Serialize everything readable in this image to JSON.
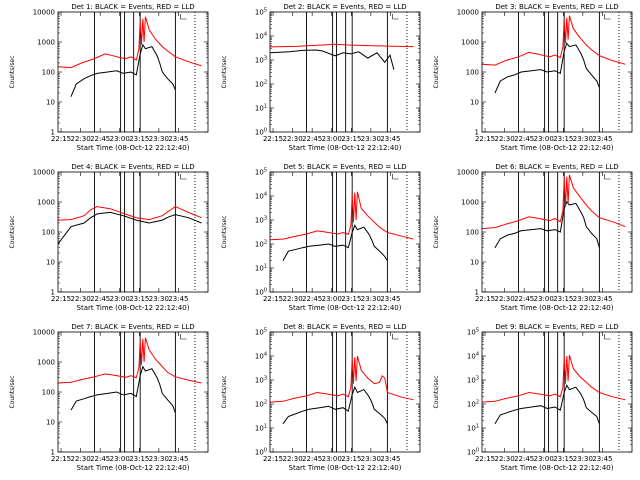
{
  "figure": {
    "xlabel": "Start Time (08-Oct-12 22:12:40)",
    "ylabel": "Counts/sec",
    "x_ticks": [
      "22:15",
      "22:30",
      "22:45",
      "23:00",
      "23:15",
      "23:30",
      "23:45"
    ],
    "colors": {
      "events": "#000000",
      "lld": "#ff0000",
      "axes": "#000000",
      "background": "#ffffff"
    }
  },
  "chart_data": [
    {
      "type": "line",
      "title": "Det 1: BLACK = Events, RED = LLD",
      "ylabel": "Counts/sec",
      "xlabel": "",
      "ylog": true,
      "ylim": [
        1,
        10000
      ],
      "y_ticks": [
        "1",
        "10",
        "100",
        "1000",
        "10000"
      ],
      "solid_markers_min": [
        28,
        48,
        51,
        58,
        63,
        90
      ],
      "dotted_markers_min": [
        105
      ],
      "series": [
        {
          "name": "Events",
          "x_min": [
            10,
            14,
            20,
            25,
            30,
            38,
            45,
            50,
            56,
            60,
            63,
            65,
            67,
            72,
            76,
            78,
            80,
            84,
            88,
            90
          ],
          "values": [
            15,
            40,
            60,
            75,
            90,
            100,
            110,
            90,
            100,
            80,
            400,
            800,
            600,
            700,
            350,
            200,
            100,
            60,
            40,
            25
          ]
        },
        {
          "name": "LLD",
          "x_min": [
            0,
            10,
            18,
            28,
            36,
            42,
            48,
            52,
            56,
            60,
            62,
            63,
            64,
            65,
            66,
            67,
            70,
            75,
            80,
            84,
            90,
            100,
            110
          ],
          "values": [
            150,
            140,
            200,
            280,
            400,
            350,
            300,
            280,
            320,
            250,
            600,
            5000,
            800,
            6000,
            1000,
            7000,
            2500,
            1200,
            700,
            500,
            320,
            220,
            160
          ]
        }
      ]
    },
    {
      "type": "line",
      "title": "Det 2: BLACK = Events, RED = LLD",
      "ylabel": "Counts/sec",
      "xlabel": "",
      "ylog": true,
      "ylim": [
        1,
        100000
      ],
      "y_ticks": [
        "10^0",
        "10^1",
        "10^2",
        "10^3",
        "10^4",
        "10^5"
      ],
      "solid_markers_min": [
        28,
        48,
        51,
        58,
        63,
        90
      ],
      "dotted_markers_min": [
        105
      ],
      "series": [
        {
          "name": "Events",
          "x_min": [
            0,
            15,
            25,
            35,
            40,
            50,
            56,
            62,
            68,
            75,
            82,
            88,
            92,
            95
          ],
          "values": [
            2000,
            2200,
            2500,
            2600,
            2400,
            1500,
            2000,
            1800,
            2200,
            1200,
            2000,
            800,
            1600,
            400
          ]
        },
        {
          "name": "LLD",
          "x_min": [
            0,
            20,
            40,
            50,
            60,
            75,
            90,
            110
          ],
          "values": [
            3500,
            3700,
            4200,
            4500,
            4200,
            4000,
            3800,
            3600
          ]
        }
      ]
    },
    {
      "type": "line",
      "title": "Det 3: BLACK = Events, RED = LLD",
      "ylabel": "Counts/sec",
      "xlabel": "",
      "ylog": true,
      "ylim": [
        1,
        10000
      ],
      "y_ticks": [
        "1",
        "10",
        "100",
        "1000",
        "10000"
      ],
      "solid_markers_min": [
        28,
        48,
        51,
        58,
        63,
        90
      ],
      "dotted_markers_min": [
        105
      ],
      "series": [
        {
          "name": "Events",
          "x_min": [
            10,
            14,
            20,
            25,
            30,
            38,
            45,
            50,
            56,
            60,
            63,
            65,
            67,
            72,
            76,
            78,
            80,
            84,
            88,
            90
          ],
          "values": [
            20,
            50,
            70,
            80,
            100,
            110,
            120,
            100,
            110,
            90,
            500,
            900,
            700,
            800,
            400,
            250,
            130,
            80,
            50,
            30
          ]
        },
        {
          "name": "LLD",
          "x_min": [
            0,
            10,
            18,
            28,
            36,
            42,
            48,
            52,
            56,
            60,
            62,
            63,
            64,
            65,
            66,
            67,
            70,
            75,
            80,
            84,
            90,
            100,
            110
          ],
          "values": [
            180,
            170,
            240,
            320,
            450,
            400,
            350,
            320,
            370,
            300,
            700,
            5500,
            900,
            6500,
            1200,
            7500,
            2800,
            1400,
            800,
            550,
            350,
            240,
            180
          ]
        }
      ]
    },
    {
      "type": "line",
      "title": "Det 4: BLACK = Events, RED = LLD",
      "ylabel": "Counts/sec",
      "xlabel": "",
      "ylog": true,
      "ylim": [
        1,
        10000
      ],
      "y_ticks": [
        "1",
        "10",
        "100",
        "1000",
        "10000"
      ],
      "solid_markers_min": [
        28,
        48,
        51,
        58,
        63,
        90
      ],
      "dotted_markers_min": [
        105
      ],
      "series": [
        {
          "name": "Events",
          "x_min": [
            0,
            10,
            20,
            25,
            30,
            40,
            50,
            60,
            70,
            80,
            85,
            90,
            100,
            110
          ],
          "values": [
            40,
            150,
            200,
            300,
            400,
            450,
            350,
            250,
            200,
            250,
            320,
            380,
            300,
            200
          ]
        },
        {
          "name": "LLD",
          "x_min": [
            0,
            10,
            20,
            25,
            30,
            40,
            50,
            60,
            70,
            80,
            85,
            90,
            100,
            110
          ],
          "values": [
            250,
            260,
            350,
            550,
            700,
            600,
            420,
            300,
            260,
            350,
            500,
            700,
            450,
            300
          ]
        }
      ]
    },
    {
      "type": "line",
      "title": "Det 5: BLACK = Events, RED = LLD",
      "ylabel": "Counts/sec",
      "xlabel": "",
      "ylog": true,
      "ylim": [
        1,
        100000
      ],
      "y_ticks": [
        "10^0",
        "10^1",
        "10^2",
        "10^3",
        "10^4",
        "10^5"
      ],
      "solid_markers_min": [
        28,
        48,
        51,
        58,
        63,
        90
      ],
      "dotted_markers_min": [
        105
      ],
      "series": [
        {
          "name": "Events",
          "x_min": [
            10,
            14,
            20,
            25,
            30,
            38,
            45,
            50,
            56,
            60,
            63,
            65,
            67,
            72,
            76,
            78,
            80,
            84,
            88,
            90
          ],
          "values": [
            20,
            50,
            60,
            70,
            80,
            90,
            100,
            80,
            90,
            70,
            300,
            600,
            400,
            500,
            250,
            150,
            80,
            50,
            30,
            20
          ]
        },
        {
          "name": "LLD",
          "x_min": [
            0,
            10,
            18,
            28,
            36,
            42,
            48,
            52,
            56,
            60,
            62,
            63,
            64,
            65,
            66,
            67,
            70,
            75,
            80,
            84,
            90,
            100,
            110
          ],
          "values": [
            150,
            160,
            200,
            260,
            350,
            320,
            280,
            260,
            300,
            250,
            600,
            12000,
            800,
            14000,
            1000,
            15000,
            3000,
            1500,
            800,
            500,
            300,
            220,
            160
          ]
        }
      ]
    },
    {
      "type": "line",
      "title": "Det 6: BLACK = Events, RED = LLD",
      "ylabel": "Counts/sec",
      "xlabel": "",
      "ylog": true,
      "ylim": [
        1,
        10000
      ],
      "y_ticks": [
        "1",
        "10",
        "100",
        "1000",
        "10000"
      ],
      "solid_markers_min": [
        28,
        48,
        51,
        58,
        63,
        90
      ],
      "dotted_markers_min": [
        105
      ],
      "series": [
        {
          "name": "Events",
          "x_min": [
            10,
            14,
            20,
            25,
            30,
            38,
            45,
            50,
            56,
            60,
            63,
            65,
            67,
            72,
            76,
            78,
            80,
            84,
            88,
            90
          ],
          "values": [
            30,
            60,
            80,
            90,
            110,
            120,
            130,
            110,
            120,
            100,
            600,
            1000,
            800,
            900,
            450,
            300,
            150,
            90,
            60,
            30
          ]
        },
        {
          "name": "LLD",
          "x_min": [
            0,
            10,
            18,
            28,
            36,
            42,
            48,
            52,
            56,
            60,
            62,
            63,
            64,
            65,
            66,
            67,
            70,
            75,
            80,
            84,
            90,
            100,
            110
          ],
          "values": [
            130,
            140,
            180,
            240,
            320,
            290,
            260,
            240,
            280,
            220,
            500,
            6000,
            700,
            7000,
            900,
            8000,
            3000,
            1500,
            800,
            500,
            300,
            220,
            150
          ]
        }
      ]
    },
    {
      "type": "line",
      "title": "Det 7: BLACK = Events, RED = LLD",
      "ylabel": "Counts/sec",
      "xlabel": "Start Time (08-Oct-12 22:12:40)",
      "ylog": true,
      "ylim": [
        1,
        10000
      ],
      "y_ticks": [
        "1",
        "10",
        "100",
        "1000",
        "10000"
      ],
      "solid_markers_min": [
        28,
        48,
        51,
        58,
        63,
        90
      ],
      "dotted_markers_min": [
        105
      ],
      "series": [
        {
          "name": "Events",
          "x_min": [
            10,
            14,
            20,
            25,
            30,
            38,
            45,
            50,
            56,
            60,
            63,
            65,
            67,
            72,
            76,
            78,
            80,
            84,
            88,
            90
          ],
          "values": [
            25,
            50,
            60,
            70,
            80,
            90,
            100,
            80,
            90,
            70,
            350,
            700,
            500,
            600,
            300,
            180,
            90,
            55,
            35,
            20
          ]
        },
        {
          "name": "LLD",
          "x_min": [
            0,
            10,
            18,
            28,
            36,
            42,
            48,
            52,
            56,
            60,
            62,
            63,
            64,
            65,
            66,
            67,
            70,
            75,
            80,
            84,
            90,
            100,
            110
          ],
          "values": [
            200,
            210,
            260,
            320,
            400,
            370,
            330,
            310,
            350,
            300,
            650,
            5000,
            800,
            6000,
            1000,
            6500,
            2500,
            1200,
            700,
            450,
            320,
            250,
            200
          ]
        }
      ]
    },
    {
      "type": "line",
      "title": "Det 8: BLACK = Events, RED = LLD",
      "ylabel": "Counts/sec",
      "xlabel": "Start Time (08-Oct-12 22:12:40)",
      "ylog": true,
      "ylim": [
        1,
        100000
      ],
      "y_ticks": [
        "10^0",
        "10^1",
        "10^2",
        "10^3",
        "10^4",
        "10^5"
      ],
      "solid_markers_min": [
        28,
        48,
        51,
        58,
        63,
        90
      ],
      "dotted_markers_min": [
        105
      ],
      "series": [
        {
          "name": "Events",
          "x_min": [
            10,
            14,
            20,
            25,
            30,
            38,
            45,
            50,
            56,
            60,
            63,
            65,
            67,
            72,
            76,
            78,
            80,
            84,
            88,
            90
          ],
          "values": [
            15,
            30,
            40,
            50,
            60,
            70,
            80,
            60,
            70,
            50,
            250,
            500,
            300,
            400,
            200,
            120,
            60,
            40,
            25,
            15
          ]
        },
        {
          "name": "LLD",
          "x_min": [
            0,
            10,
            18,
            28,
            36,
            42,
            48,
            52,
            56,
            60,
            62,
            63,
            64,
            65,
            66,
            67,
            70,
            75,
            80,
            84,
            86,
            88,
            90,
            100,
            110
          ],
          "values": [
            120,
            130,
            170,
            220,
            300,
            270,
            240,
            220,
            260,
            200,
            500,
            8000,
            700,
            9000,
            900,
            10000,
            2500,
            1200,
            700,
            800,
            1500,
            1200,
            300,
            200,
            150
          ]
        }
      ]
    },
    {
      "type": "line",
      "title": "Det 9: BLACK = Events, RED = LLD",
      "ylabel": "Counts/sec",
      "xlabel": "Start Time (08-Oct-12 22:12:40)",
      "ylog": true,
      "ylim": [
        1,
        100000
      ],
      "y_ticks": [
        "10^0",
        "10^1",
        "10^2",
        "10^3",
        "10^4",
        "10^5"
      ],
      "solid_markers_min": [
        28,
        48,
        51,
        58,
        63,
        90
      ],
      "dotted_markers_min": [
        105
      ],
      "series": [
        {
          "name": "Events",
          "x_min": [
            10,
            14,
            20,
            25,
            30,
            38,
            45,
            50,
            56,
            60,
            63,
            65,
            67,
            72,
            76,
            78,
            80,
            84,
            88,
            90
          ],
          "values": [
            15,
            35,
            45,
            55,
            65,
            75,
            85,
            65,
            75,
            55,
            300,
            600,
            400,
            500,
            250,
            150,
            70,
            45,
            30,
            15
          ]
        },
        {
          "name": "LLD",
          "x_min": [
            0,
            10,
            18,
            28,
            36,
            42,
            48,
            52,
            56,
            60,
            62,
            63,
            64,
            65,
            66,
            67,
            70,
            75,
            80,
            84,
            90,
            100,
            110
          ],
          "values": [
            120,
            130,
            170,
            220,
            300,
            270,
            240,
            220,
            260,
            200,
            500,
            9000,
            700,
            10000,
            900,
            11000,
            3000,
            1400,
            800,
            500,
            300,
            200,
            150
          ]
        }
      ]
    }
  ]
}
